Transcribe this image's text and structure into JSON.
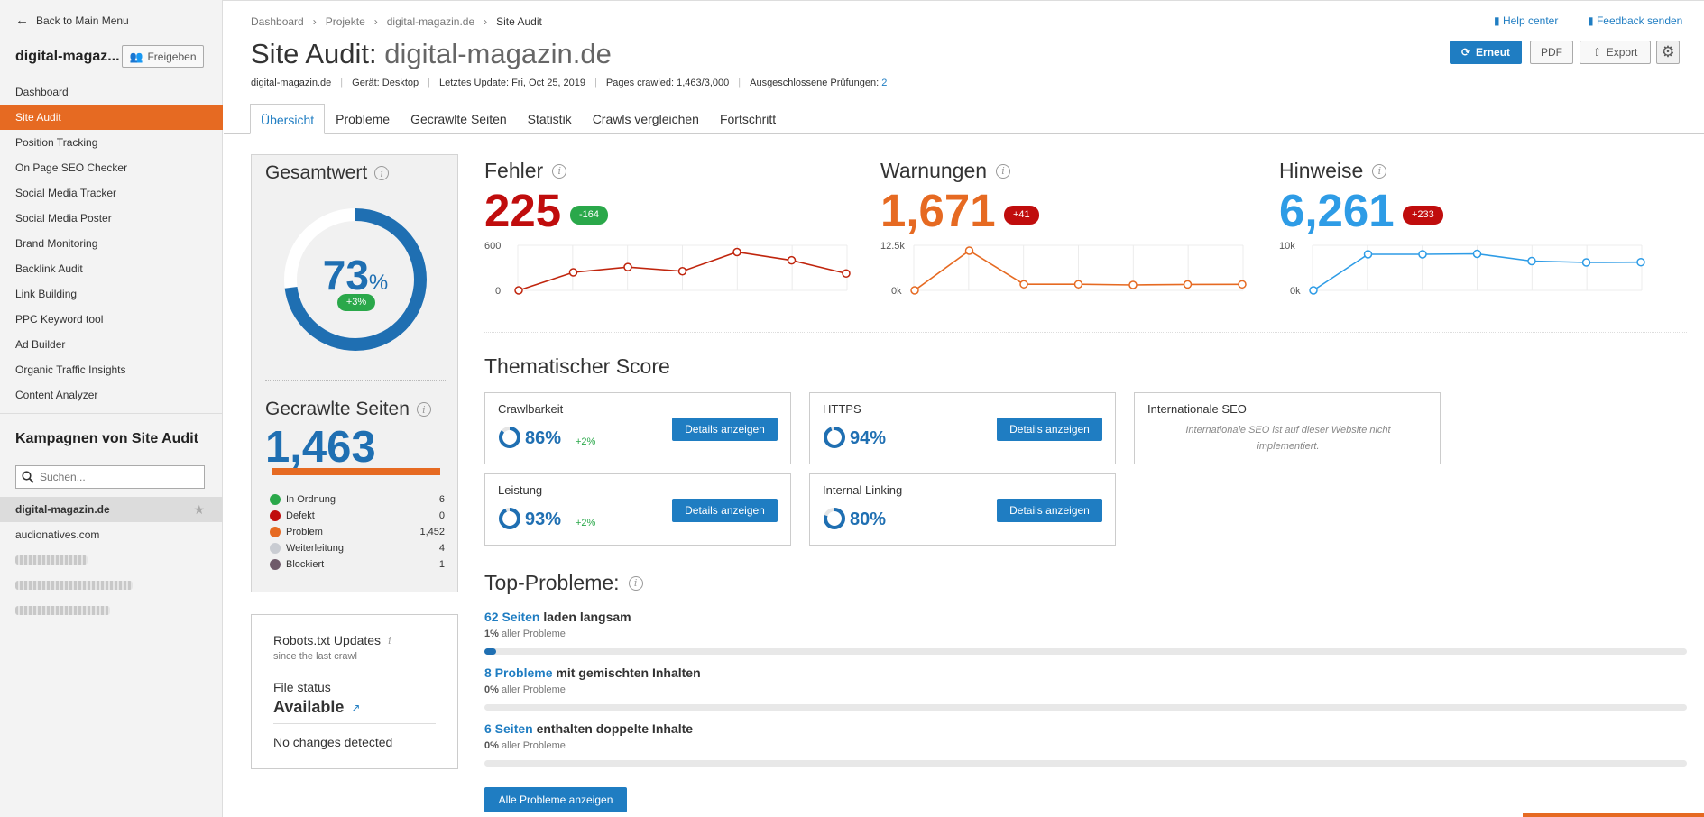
{
  "sidebar": {
    "back_label": "Back to Main Menu",
    "project_title": "digital-magaz...",
    "share_label": "Freigeben",
    "nav": [
      {
        "label": "Dashboard"
      },
      {
        "label": "Site Audit"
      },
      {
        "label": "Position Tracking"
      },
      {
        "label": "On Page SEO Checker"
      },
      {
        "label": "Social Media Tracker"
      },
      {
        "label": "Social Media Poster"
      },
      {
        "label": "Brand Monitoring"
      },
      {
        "label": "Backlink Audit"
      },
      {
        "label": "Link Building"
      },
      {
        "label": "PPC Keyword tool"
      },
      {
        "label": "Ad Builder"
      },
      {
        "label": "Organic Traffic Insights"
      },
      {
        "label": "Content Analyzer"
      }
    ],
    "active_nav": "Site Audit",
    "campaigns_title": "Kampagnen von Site Audit",
    "search_placeholder": "Suchen...",
    "campaigns": [
      {
        "label": "digital-magazin.de"
      },
      {
        "label": "audionatives.com"
      }
    ]
  },
  "header": {
    "breadcrumb": [
      "Dashboard",
      "Projekte",
      "digital-magazin.de",
      "Site Audit"
    ],
    "help_label": "Help center",
    "feedback_label": "Feedback senden",
    "title_prefix": "Site Audit:",
    "title_domain": "digital-magazin.de",
    "buttons": {
      "rerun": "Erneut",
      "pdf": "PDF",
      "export": "Export"
    },
    "meta": {
      "domain": "digital-magazin.de",
      "device": "Gerät: Desktop",
      "last_update": "Letztes Update: Fri, Oct 25, 2019",
      "pages_crawled": "Pages crawled: 1,463/3,000",
      "excluded_label": "Ausgeschlossene Prüfungen:",
      "excluded_count": "2"
    },
    "tabs": [
      {
        "label": "Übersicht"
      },
      {
        "label": "Probleme"
      },
      {
        "label": "Gecrawlte Seiten"
      },
      {
        "label": "Statistik"
      },
      {
        "label": "Crawls vergleichen"
      },
      {
        "label": "Fortschritt"
      }
    ],
    "active_tab": "Übersicht"
  },
  "total_score": {
    "title": "Gesamtwert",
    "value": "73",
    "percent_sign": "%",
    "percent": 73,
    "delta": "+3%",
    "ring_color": "#1f6fb2"
  },
  "crawled": {
    "title": "Gecrawlte Seiten",
    "value": "1,463",
    "legend": [
      {
        "label": "In Ordnung",
        "count": "6",
        "color": "#2aa84a"
      },
      {
        "label": "Defekt",
        "count": "0",
        "color": "#c00d0d"
      },
      {
        "label": "Problem",
        "count": "1,452",
        "color": "#e66a22"
      },
      {
        "label": "Weiterleitung",
        "count": "4",
        "color": "#c9ccd2"
      },
      {
        "label": "Blockiert",
        "count": "1",
        "color": "#6f5a6a"
      }
    ]
  },
  "robots": {
    "title": "Robots.txt Updates",
    "subtitle": "since the last crawl",
    "file_status_label": "File status",
    "file_status": "Available",
    "changes": "No changes detected"
  },
  "metrics": [
    {
      "title": "Fehler",
      "value": "225",
      "delta": "-164",
      "value_color": "#c00d0d",
      "badge_color": "#2aa84a",
      "line_color": "#c0250d",
      "ymax_label": "600",
      "ymin_label": "0"
    },
    {
      "title": "Warnungen",
      "value": "1,671",
      "delta": "+41",
      "value_color": "#e66a22",
      "badge_color": "#c00d0d",
      "line_color": "#e66a22",
      "ymax_label": "12.5k",
      "ymin_label": "0k"
    },
    {
      "title": "Hinweise",
      "value": "6,261",
      "delta": "+233",
      "value_color": "#2e9ce6",
      "badge_color": "#c00d0d",
      "line_color": "#2e9ce6",
      "ymax_label": "10k",
      "ymin_label": "0k"
    }
  ],
  "chart_data": [
    {
      "type": "line",
      "title": "Fehler",
      "ylim": [
        0,
        600
      ],
      "values": [
        0,
        240,
        310,
        255,
        510,
        400,
        225
      ]
    },
    {
      "type": "line",
      "title": "Warnungen",
      "ylim": [
        0,
        12500
      ],
      "values": [
        0,
        11000,
        1700,
        1700,
        1500,
        1650,
        1671
      ]
    },
    {
      "type": "line",
      "title": "Hinweise",
      "ylim": [
        0,
        10000
      ],
      "values": [
        0,
        8000,
        8000,
        8100,
        6500,
        6200,
        6261
      ]
    }
  ],
  "thematic": {
    "title": "Thematischer Score",
    "details_label": "Details anzeigen",
    "cards": [
      {
        "name": "Crawlbarkeit",
        "percent": "86%",
        "value": 86,
        "delta": "+2%"
      },
      {
        "name": "HTTPS",
        "percent": "94%",
        "value": 94,
        "delta": ""
      },
      {
        "name": "Internationale SEO",
        "note": "Internationale SEO ist auf dieser Website nicht implementiert."
      },
      {
        "name": "Leistung",
        "percent": "93%",
        "value": 93,
        "delta": "+2%"
      },
      {
        "name": "Internal Linking",
        "percent": "80%",
        "value": 80,
        "delta": ""
      }
    ]
  },
  "top_problems": {
    "title": "Top-Probleme:",
    "items": [
      {
        "link": "62 Seiten",
        "text": "laden langsam",
        "pct": "1%",
        "pct_suffix": "aller Probleme",
        "share": 0.01
      },
      {
        "link": "8 Probleme",
        "text": "mit gemischten Inhalten",
        "pct": "0%",
        "pct_suffix": "aller Probleme",
        "share": 0
      },
      {
        "link": "6 Seiten",
        "text": "enthalten doppelte Inhalte",
        "pct": "0%",
        "pct_suffix": "aller Probleme",
        "share": 0
      }
    ],
    "all_label": "Alle Probleme anzeigen"
  }
}
